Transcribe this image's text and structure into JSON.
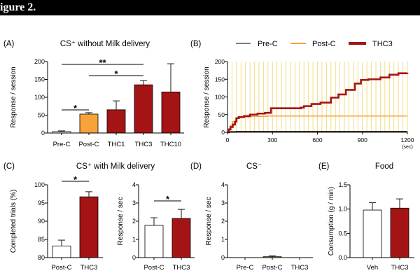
{
  "figure": {
    "heading": "igure 2."
  },
  "chart_data": [
    {
      "type": "bar",
      "panel_label": "(A)",
      "title": "CS⁺ without Milk delivery",
      "ylabel": "Response / session",
      "categories": [
        "Pre-C",
        "Post-C",
        "THC1",
        "THC3",
        "THC10"
      ],
      "values": [
        4,
        53,
        65,
        135,
        115
      ],
      "errors": [
        2,
        4,
        25,
        12,
        79
      ],
      "bar_colors": [
        "#ffffff",
        "#f7a23b",
        "#a51414",
        "#a51414",
        "#a51414"
      ],
      "ylim": [
        0,
        200
      ],
      "yticks": [
        0,
        50,
        100,
        150,
        200
      ],
      "ytick_labels": [
        "0",
        "50",
        "100",
        "150",
        "200"
      ],
      "significance": [
        {
          "between": [
            0,
            1
          ],
          "label": "*"
        },
        {
          "between": [
            1,
            3
          ],
          "label": "*"
        },
        {
          "between": [
            0,
            3
          ],
          "label": "**"
        }
      ]
    },
    {
      "type": "line",
      "panel_label": "(B)",
      "ylabel": "Response / session",
      "xlabel": "(sec)",
      "xlim": [
        0,
        1200
      ],
      "ylim": [
        0,
        200
      ],
      "xticks": [
        0,
        300,
        600,
        900,
        1200
      ],
      "xtick_labels": [
        "0",
        "300",
        "600",
        "900",
        "1200"
      ],
      "yticks": [
        0,
        50,
        100,
        150,
        200
      ],
      "ytick_labels": [
        "0",
        "50",
        "100",
        "150",
        "200"
      ],
      "cs_interval_sec": 30,
      "cs_count": 40,
      "cs_color": "#f4d878",
      "legend": "top",
      "series": [
        {
          "name": "Pre-C",
          "color": "#000000",
          "points": [
            [
              0,
              0
            ],
            [
              20,
              2
            ],
            [
              60,
              3
            ],
            [
              1200,
              3
            ]
          ]
        },
        {
          "name": "Post-C",
          "color": "#f7a23b",
          "points": [
            [
              0,
              0
            ],
            [
              10,
              10
            ],
            [
              20,
              20
            ],
            [
              35,
              30
            ],
            [
              55,
              40
            ],
            [
              80,
              43
            ],
            [
              150,
              45
            ],
            [
              260,
              46
            ],
            [
              1200,
              46
            ]
          ]
        },
        {
          "name": "THC3",
          "color": "#a51414",
          "points": [
            [
              0,
              0
            ],
            [
              10,
              8
            ],
            [
              20,
              15
            ],
            [
              35,
              22
            ],
            [
              50,
              30
            ],
            [
              60,
              40
            ],
            [
              75,
              43
            ],
            [
              110,
              46
            ],
            [
              150,
              50
            ],
            [
              200,
              53
            ],
            [
              250,
              55
            ],
            [
              290,
              68
            ],
            [
              490,
              70
            ],
            [
              510,
              74
            ],
            [
              560,
              80
            ],
            [
              620,
              84
            ],
            [
              690,
              98
            ],
            [
              740,
              107
            ],
            [
              790,
              120
            ],
            [
              850,
              138
            ],
            [
              890,
              148
            ],
            [
              940,
              150
            ],
            [
              1020,
              155
            ],
            [
              1080,
              163
            ],
            [
              1140,
              167
            ],
            [
              1200,
              168
            ]
          ]
        }
      ]
    },
    {
      "type": "bar",
      "panel_label": "(C)",
      "title": "CS⁺ with Milk delivery",
      "ylabel": "Completed trials (%)",
      "categories": [
        "Post-C",
        "THC3"
      ],
      "values": [
        83.2,
        96.7
      ],
      "errors": [
        1.6,
        1.4
      ],
      "bar_colors": [
        "#ffffff",
        "#a51414"
      ],
      "ylim": [
        80,
        100
      ],
      "yticks": [
        80,
        85,
        90,
        95,
        100
      ],
      "ytick_labels": [
        "80",
        "85",
        "90",
        "95",
        "100"
      ],
      "significance": [
        {
          "between": [
            0,
            1
          ],
          "label": "*"
        }
      ]
    },
    {
      "type": "bar",
      "ylabel": "Response / sec",
      "categories": [
        "Post-C",
        "THC3"
      ],
      "values": [
        1.77,
        2.15
      ],
      "errors": [
        0.42,
        0.5
      ],
      "bar_colors": [
        "#ffffff",
        "#a51414"
      ],
      "ylim": [
        0,
        4
      ],
      "yticks": [
        0,
        1,
        2,
        3,
        4
      ],
      "ytick_labels": [
        "0",
        "1",
        "2",
        "3",
        "4"
      ],
      "significance": [
        {
          "between": [
            0,
            1
          ],
          "label": "*"
        }
      ]
    },
    {
      "type": "bar",
      "panel_label": "(D)",
      "title": "CS⁻",
      "ylabel": "Response / sec",
      "categories": [
        "Pre-C",
        "Post-C",
        "THC3"
      ],
      "values": [
        0,
        0.05,
        0
      ],
      "errors": [
        0,
        0.04,
        0
      ],
      "bar_colors": [
        "#ffffff",
        "#f7a23b",
        "#a51414"
      ],
      "ylim": [
        0,
        4
      ],
      "yticks": [
        0,
        1,
        2,
        3,
        4
      ],
      "ytick_labels": [
        "0",
        "1",
        "2",
        "3",
        "4"
      ],
      "significance": []
    },
    {
      "type": "bar",
      "panel_label": "(E)",
      "title": "Food",
      "ylabel": "Consumption (g / min)",
      "categories": [
        "Veh",
        "THC3"
      ],
      "values": [
        0.98,
        1.02
      ],
      "errors": [
        0.15,
        0.19
      ],
      "bar_colors": [
        "#ffffff",
        "#a51414"
      ],
      "ylim": [
        0,
        1.5
      ],
      "yticks": [
        0,
        0.5,
        1,
        1.5
      ],
      "ytick_labels": [
        "0.0",
        "0.5",
        "1.0",
        "1.5"
      ],
      "significance": []
    }
  ]
}
